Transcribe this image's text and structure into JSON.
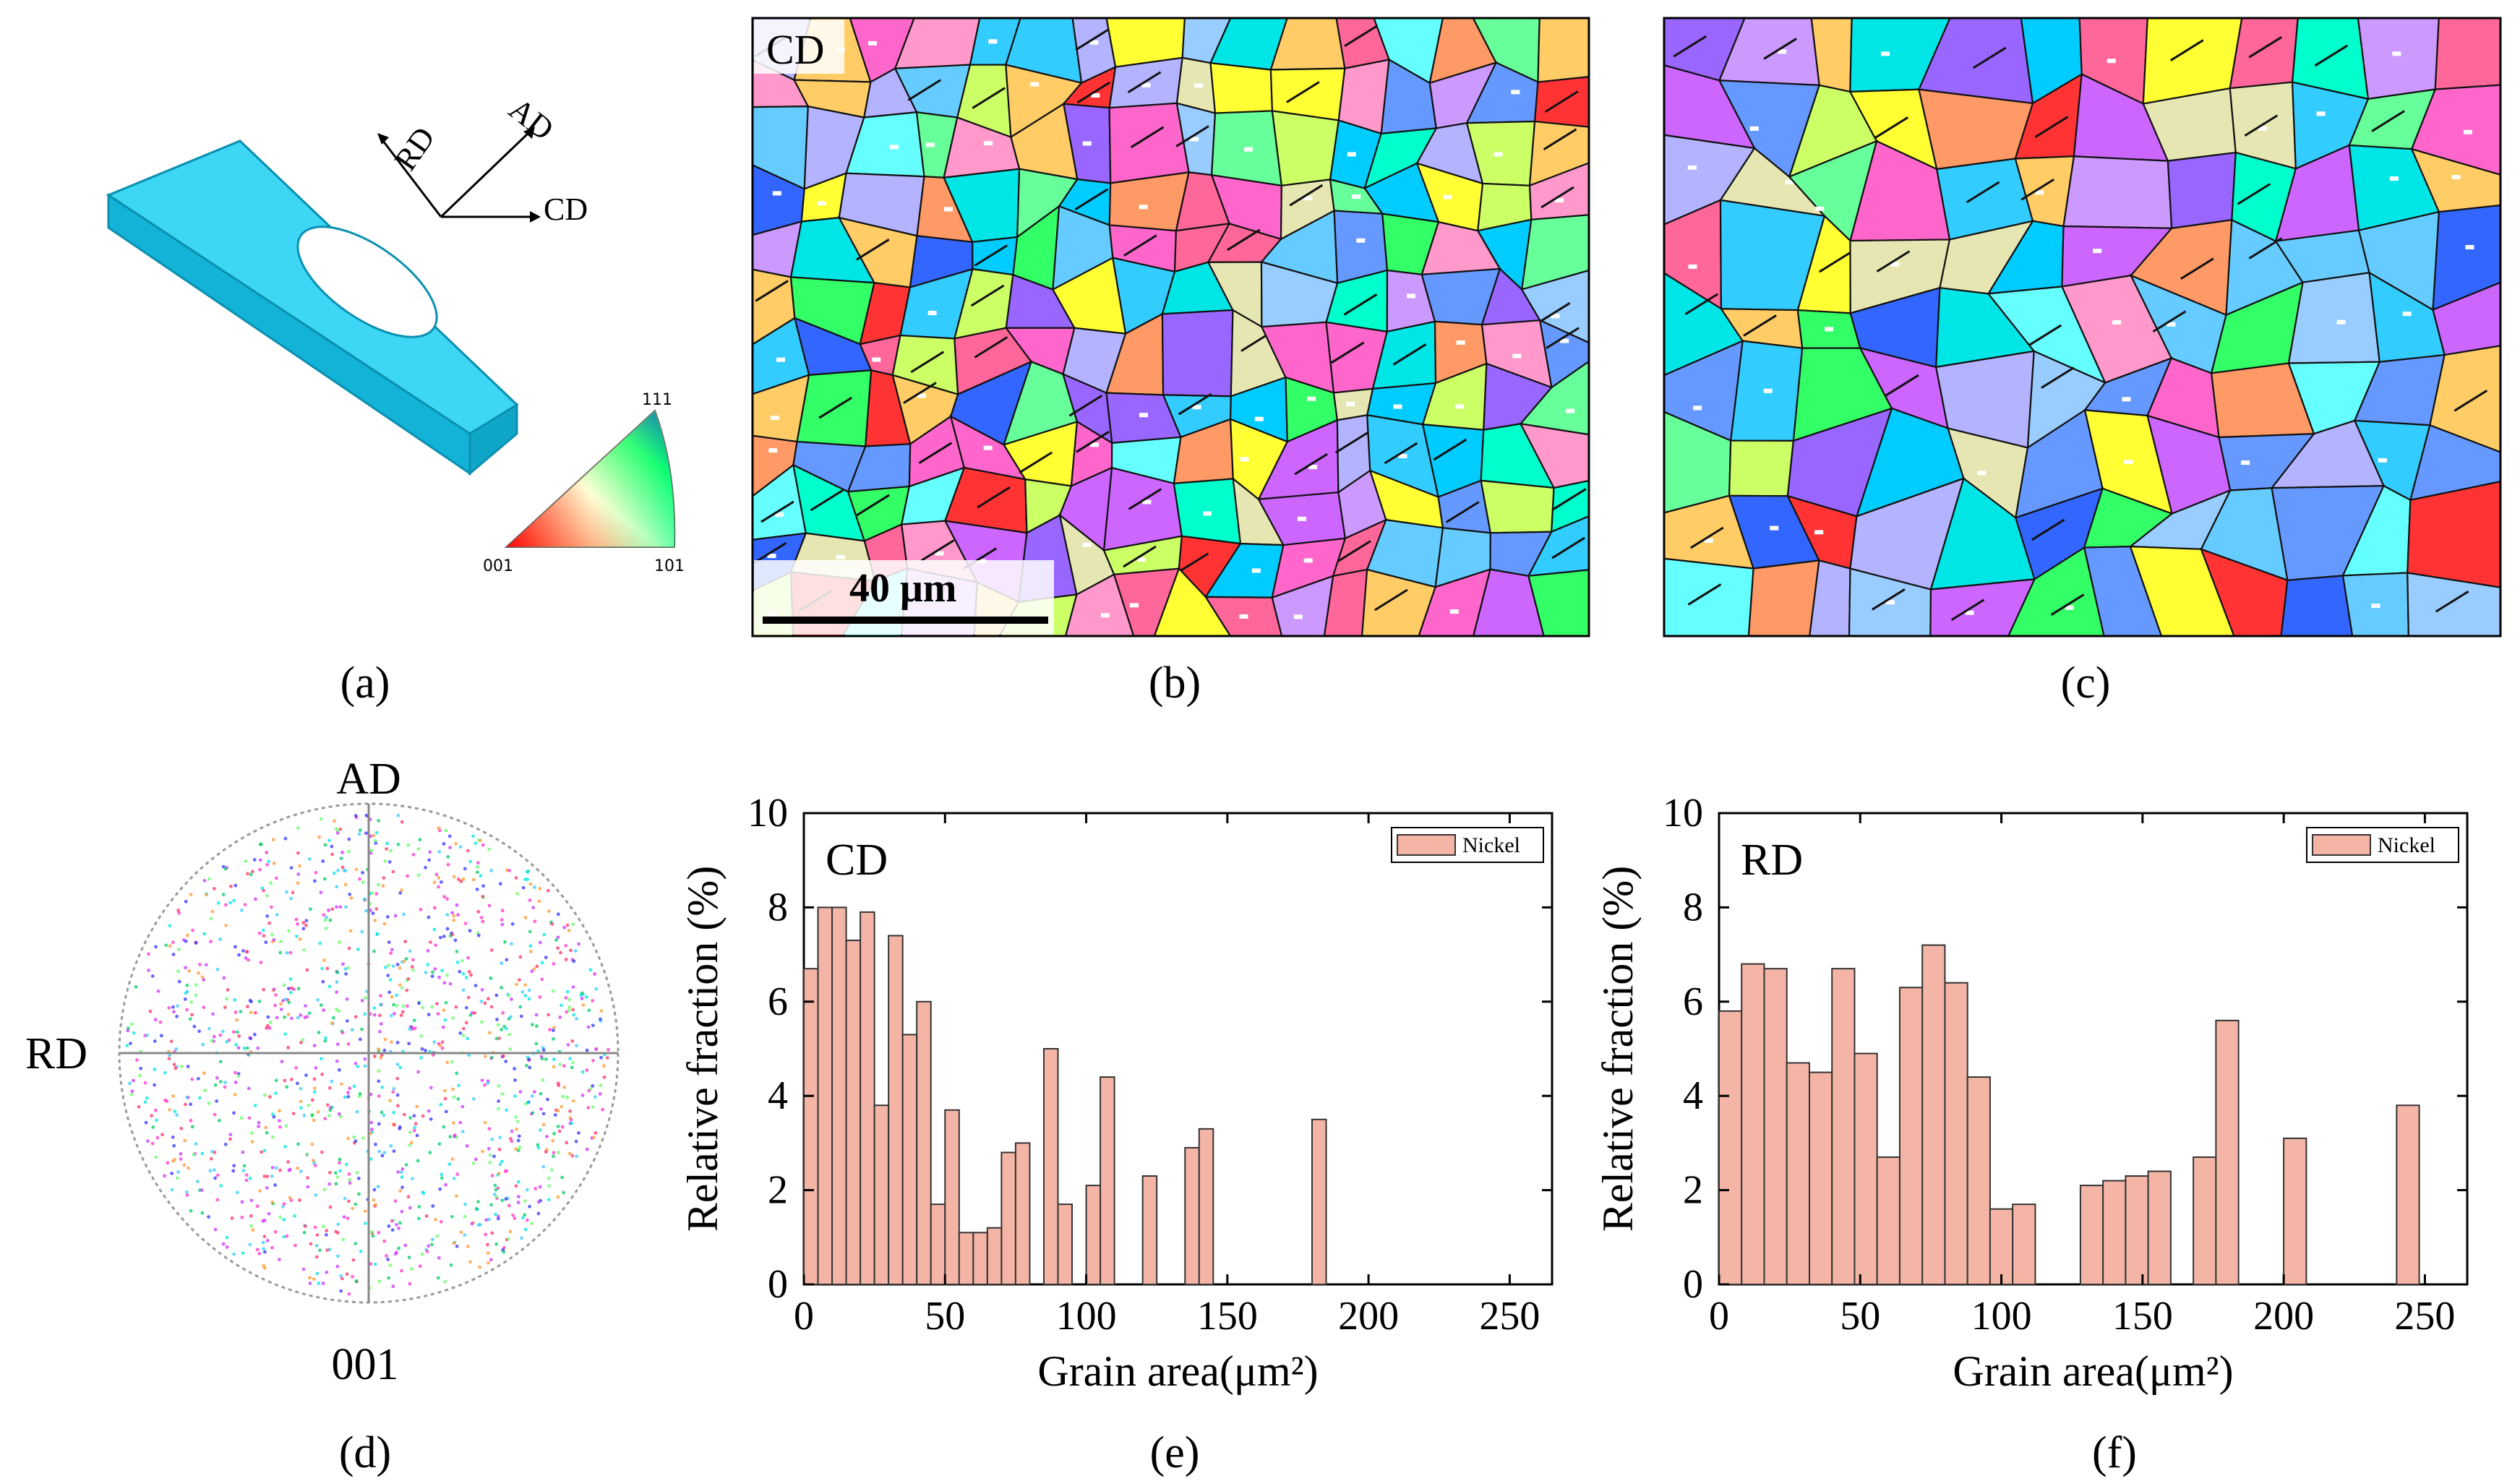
{
  "panel_labels": {
    "a": "(a)",
    "b": "(b)",
    "c": "(c)",
    "d": "(d)",
    "e": "(e)",
    "f": "(f)"
  },
  "schematic": {
    "axes": [
      "RD",
      "AD",
      "CD"
    ],
    "ipf_corners": [
      "001",
      "101",
      "111"
    ],
    "ring_color": "#1ed0f2"
  },
  "map_b": {
    "direction_label": "CD",
    "scale_bar": "40 μm"
  },
  "pole_figure": {
    "top": "AD",
    "left": "RD",
    "bottom": "001"
  },
  "chart_data": [
    {
      "type": "bar",
      "panel": "e",
      "title": "CD",
      "xlabel": "Grain area(μm²)",
      "ylabel": "Relative fraction (%)",
      "legend": "Nickel",
      "legend_position": "top-right",
      "bar_color": "#f5b5a6",
      "bin_width": 5,
      "xlim": [
        0,
        265
      ],
      "ylim": [
        0,
        10
      ],
      "xticks": [
        "0",
        "50",
        "100",
        "150",
        "200",
        "250"
      ],
      "yticks": [
        "0",
        "2",
        "4",
        "6",
        "8",
        "10"
      ],
      "bin_starts": [
        0,
        5,
        10,
        15,
        20,
        25,
        30,
        35,
        40,
        45,
        50,
        55,
        60,
        65,
        70,
        75,
        85,
        90,
        100,
        105,
        120,
        135,
        140,
        180,
        200,
        210
      ],
      "values": [
        6.7,
        8.0,
        8.0,
        7.3,
        7.9,
        3.8,
        7.4,
        5.3,
        6.0,
        1.7,
        3.7,
        1.1,
        1.1,
        1.2,
        2.8,
        3.0,
        5.0,
        1.7,
        2.1,
        4.4,
        2.3,
        2.9,
        3.3,
        3.5,
        0,
        0
      ]
    },
    {
      "type": "bar",
      "panel": "f",
      "title": "RD",
      "xlabel": "Grain area(μm²)",
      "ylabel": "Relative fraction (%)",
      "legend": "Nickel",
      "legend_position": "top-right",
      "bar_color": "#f5b5a6",
      "bin_width": 8,
      "xlim": [
        0,
        265
      ],
      "ylim": [
        0,
        10
      ],
      "xticks": [
        "0",
        "50",
        "100",
        "150",
        "200",
        "250"
      ],
      "yticks": [
        "0",
        "2",
        "4",
        "6",
        "8",
        "10"
      ],
      "bin_starts": [
        0,
        8,
        16,
        24,
        32,
        40,
        48,
        56,
        64,
        72,
        80,
        88,
        96,
        104,
        128,
        136,
        144,
        152,
        168,
        176,
        200,
        240
      ],
      "values": [
        5.8,
        6.8,
        6.7,
        4.7,
        4.5,
        6.7,
        4.9,
        2.7,
        6.3,
        7.2,
        6.4,
        4.4,
        1.6,
        1.7,
        2.1,
        2.2,
        2.3,
        2.4,
        2.7,
        5.6,
        3.1,
        3.8
      ]
    }
  ]
}
